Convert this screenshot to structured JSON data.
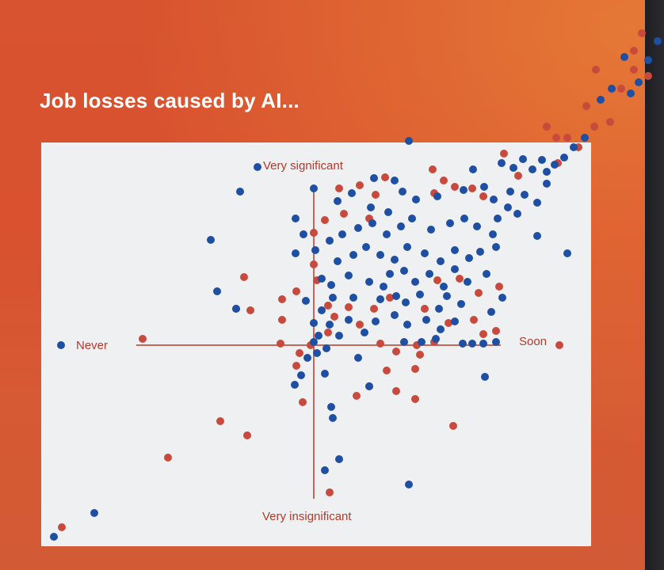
{
  "title": "Job losses caused by AI...",
  "labels": {
    "top": "Very significant",
    "bottom": "Very insignificant",
    "left": "Never",
    "right": "Soon"
  },
  "colors": {
    "blue": "#1f4fa3",
    "red": "#c84a3c",
    "axis": "#b53a2a",
    "board": "#eef0f2"
  }
}
